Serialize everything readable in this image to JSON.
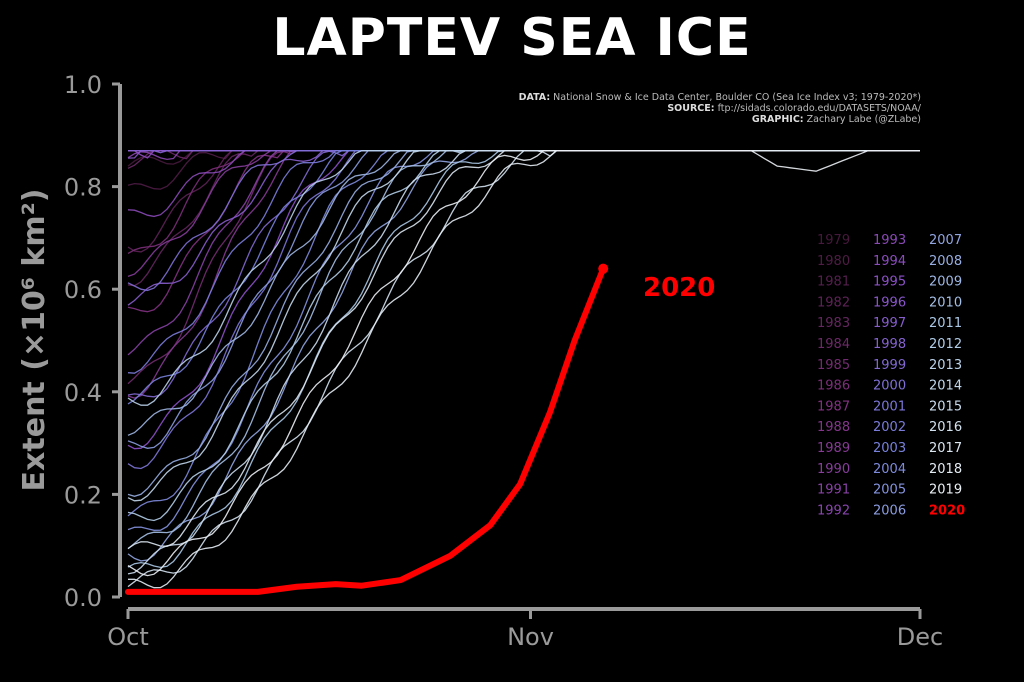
{
  "chart_data": {
    "type": "line",
    "title": "LAPTEV SEA ICE",
    "ylabel": "Extent (×10⁶ km²)",
    "ylim": [
      0,
      1.0
    ],
    "yticks": [
      "0.0",
      "0.2",
      "0.4",
      "0.6",
      "0.8",
      "1.0"
    ],
    "xticks": [
      "Oct",
      "Nov",
      "Dec"
    ],
    "x_unit": "day since Oct 1",
    "xlim": [
      0,
      61
    ],
    "max_extent": 0.87,
    "credits": {
      "data_label": "DATA:",
      "data": "National Snow & Ice Data Center, Boulder CO (Sea Ice Index v3; 1979-2020*)",
      "source_label": "SOURCE:",
      "source": "ftp://sidads.colorado.edu/DATASETS/NOAA/",
      "graphic_label": "GRAPHIC:",
      "graphic": "Zachary Labe (@ZLabe)"
    },
    "highlight": {
      "name": "2020",
      "color": "#ff0000",
      "x": [
        0,
        5,
        10,
        13,
        16,
        18,
        21,
        24.8,
        27.9,
        30.2,
        32.5,
        34.4,
        36.6
      ],
      "y": [
        0.01,
        0.01,
        0.01,
        0.02,
        0.025,
        0.022,
        0.033,
        0.08,
        0.14,
        0.22,
        0.36,
        0.5,
        0.64
      ]
    },
    "years": [
      {
        "name": "1979",
        "start": 0.84,
        "full_day": 6
      },
      {
        "name": "1980",
        "start": 0.79,
        "full_day": 8
      },
      {
        "name": "1981",
        "start": 0.87,
        "full_day": 0
      },
      {
        "name": "1982",
        "start": 0.68,
        "full_day": 9
      },
      {
        "name": "1983",
        "start": 0.62,
        "full_day": 10
      },
      {
        "name": "1984",
        "start": 0.85,
        "full_day": 5
      },
      {
        "name": "1985",
        "start": 0.42,
        "full_day": 13
      },
      {
        "name": "1986",
        "start": 0.66,
        "full_day": 9
      },
      {
        "name": "1987",
        "start": 0.55,
        "full_day": 12
      },
      {
        "name": "1988",
        "start": 0.87,
        "full_day": 0
      },
      {
        "name": "1989",
        "start": 0.4,
        "full_day": 14
      },
      {
        "name": "1990",
        "start": 0.64,
        "full_day": 11
      },
      {
        "name": "1991",
        "start": 0.48,
        "full_day": 13
      },
      {
        "name": "1992",
        "start": 0.85,
        "full_day": 4
      },
      {
        "name": "1993",
        "start": 0.74,
        "full_day": 10
      },
      {
        "name": "1994",
        "start": 0.87,
        "full_day": 2
      },
      {
        "name": "1995",
        "start": 0.3,
        "full_day": 18
      },
      {
        "name": "1996",
        "start": 0.87,
        "full_day": 1
      },
      {
        "name": "1997",
        "start": 0.58,
        "full_day": 15
      },
      {
        "name": "1998",
        "start": 0.87,
        "full_day": 3
      },
      {
        "name": "1999",
        "start": 0.38,
        "full_day": 17
      },
      {
        "name": "2000",
        "start": 0.6,
        "full_day": 13
      },
      {
        "name": "2001",
        "start": 0.26,
        "full_day": 19
      },
      {
        "name": "2002",
        "start": 0.45,
        "full_day": 16
      },
      {
        "name": "2003",
        "start": 0.39,
        "full_day": 18
      },
      {
        "name": "2004",
        "start": 0.16,
        "full_day": 21
      },
      {
        "name": "2005",
        "start": 0.12,
        "full_day": 24
      },
      {
        "name": "2006",
        "start": 0.29,
        "full_day": 20
      },
      {
        "name": "2007",
        "start": 0.08,
        "full_day": 27
      },
      {
        "name": "2008",
        "start": 0.21,
        "full_day": 23
      },
      {
        "name": "2009",
        "start": 0.33,
        "full_day": 22
      },
      {
        "name": "2010",
        "start": 0.1,
        "full_day": 25
      },
      {
        "name": "2011",
        "start": 0.05,
        "full_day": 29
      },
      {
        "name": "2012",
        "start": 0.15,
        "full_day": 26
      },
      {
        "name": "2013",
        "start": 0.38,
        "full_day": 19
      },
      {
        "name": "2014",
        "start": 0.2,
        "full_day": 24
      },
      {
        "name": "2015",
        "start": 0.06,
        "full_day": 27
      },
      {
        "name": "2016",
        "start": 0.03,
        "full_day": 33
      },
      {
        "name": "2017",
        "start": 0.09,
        "full_day": 30
      },
      {
        "name": "2018",
        "start": 0.02,
        "full_day": 34
      },
      {
        "name": "2019",
        "start": 0.05,
        "full_day": 32,
        "dip": {
          "x": [
            48,
            50,
            53,
            55,
            57
          ],
          "y": [
            0.87,
            0.84,
            0.83,
            0.85,
            0.87
          ]
        }
      }
    ]
  }
}
